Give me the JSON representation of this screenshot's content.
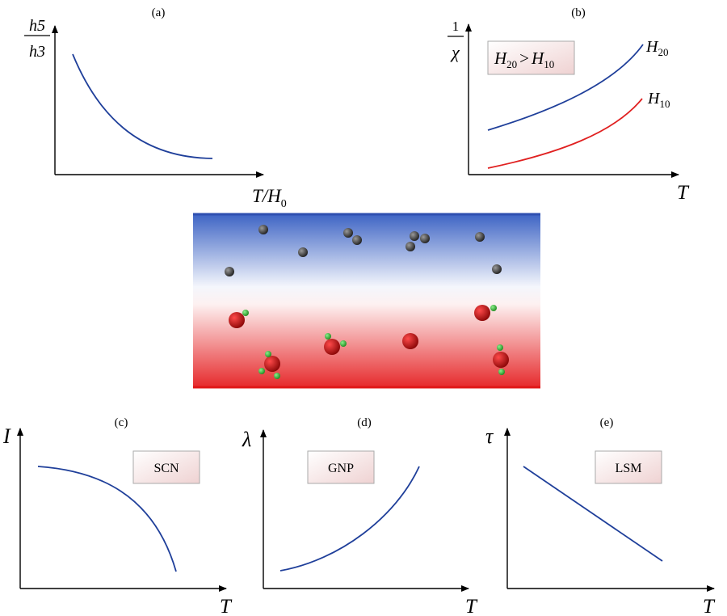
{
  "panels": {
    "a": {
      "tag": "(a)",
      "y_num": "h5",
      "y_den": "h3",
      "x_label": "T/H",
      "x_sub": "0"
    },
    "b": {
      "tag": "(b)",
      "y_num": "1",
      "y_den": "χ",
      "x_label": "T",
      "legend_box": {
        "h_left": "H",
        "sub_left": "20",
        "op": ">",
        "h_right": "H",
        "sub_right": "10"
      },
      "curves": [
        {
          "h": "H",
          "sub": "20",
          "color": "#1f3f9a"
        },
        {
          "h": "H",
          "sub": "10",
          "color": "#e02020"
        }
      ]
    },
    "c": {
      "tag": "(c)",
      "y_label": "I",
      "x_label": "T",
      "box": "SCN"
    },
    "d": {
      "tag": "(d)",
      "y_label": "λ",
      "x_label": "T",
      "box": "GNP"
    },
    "e": {
      "tag": "(e)",
      "y_label": "τ",
      "x_label": "T",
      "box": "LSM"
    }
  },
  "colors": {
    "curve_blue": "#1f3f9a",
    "curve_red": "#e02020",
    "cold_band": "#2e4fb0",
    "hot_band": "#e01818",
    "particle_dark": "#3a3a3a",
    "particle_red": "#c81010",
    "ligand_green": "#38c038",
    "label_box_fill": "#f6e6e6"
  }
}
